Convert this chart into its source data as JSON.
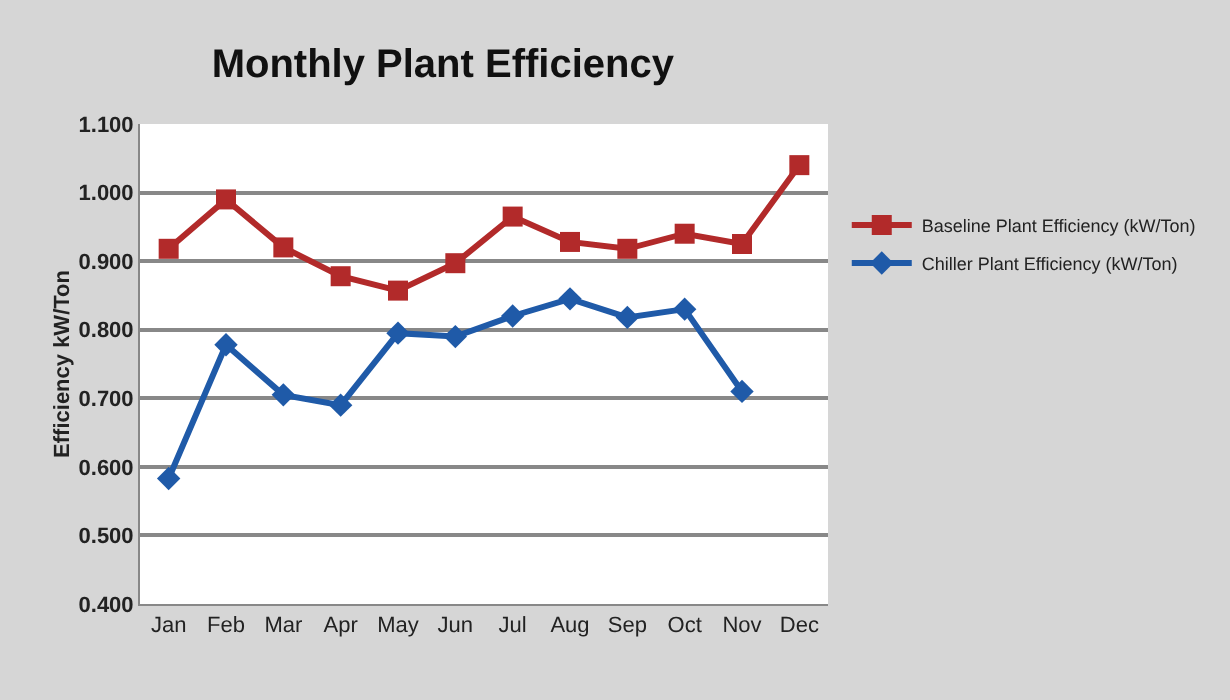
{
  "chart_data": {
    "type": "line",
    "title": "Monthly Plant Efficiency",
    "ylabel": "Efficiency kW/Ton",
    "categories": [
      "Jan",
      "Feb",
      "Mar",
      "Apr",
      "May",
      "Jun",
      "Jul",
      "Aug",
      "Sep",
      "Oct",
      "Nov",
      "Dec"
    ],
    "series": [
      {
        "name": "Baseline Plant Efficiency (kW/Ton)",
        "color": "#b22a2a",
        "marker": "square",
        "values": [
          0.918,
          0.99,
          0.92,
          0.878,
          0.857,
          0.897,
          0.965,
          0.928,
          0.918,
          0.94,
          0.925,
          1.04
        ]
      },
      {
        "name": "Chiller Plant Efficiency (kW/Ton)",
        "color": "#1f5aa8",
        "marker": "diamond",
        "values": [
          0.583,
          0.778,
          0.705,
          0.69,
          0.795,
          0.79,
          0.82,
          0.845,
          0.818,
          0.83,
          0.71,
          null
        ]
      }
    ],
    "ylim": [
      0.4,
      1.1
    ],
    "yticks": [
      {
        "value": 0.4,
        "label": "0.400"
      },
      {
        "value": 0.5,
        "label": "0.500"
      },
      {
        "value": 0.6,
        "label": "0.600"
      },
      {
        "value": 0.7,
        "label": "0.700"
      },
      {
        "value": 0.8,
        "label": "0.800"
      },
      {
        "value": 0.9,
        "label": "0.900"
      },
      {
        "value": 1.0,
        "label": "1.000"
      },
      {
        "value": 1.1,
        "label": "1.100"
      }
    ],
    "grid": "y",
    "legend": "right",
    "line_style": "solid"
  }
}
